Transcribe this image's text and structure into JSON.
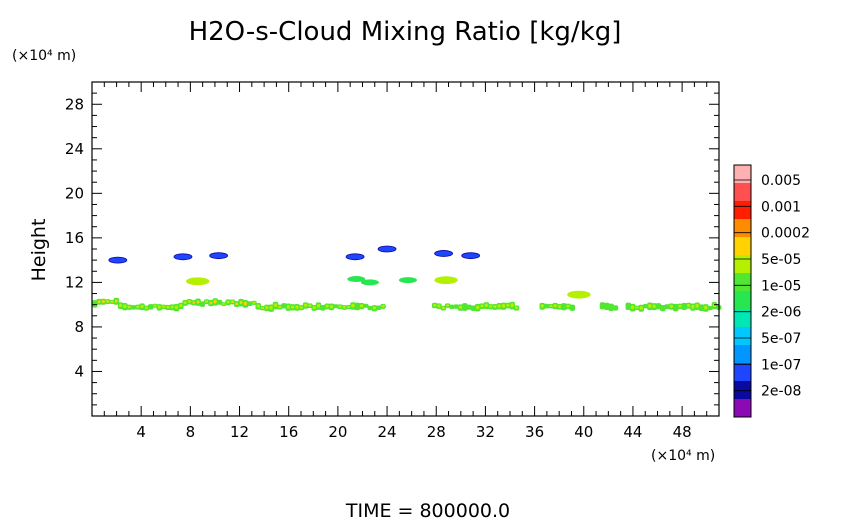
{
  "chart_data": {
    "type": "heatmap",
    "title": "H2O-s-Cloud Mixing Ratio [kg/kg]",
    "ylabel": "Height",
    "x_unit": "(×10⁴ m)",
    "y_unit": "(×10⁴ m)",
    "xlim": [
      0,
      51
    ],
    "ylim": [
      0,
      30
    ],
    "x_ticks": [
      4,
      8,
      12,
      16,
      20,
      24,
      28,
      32,
      36,
      40,
      44,
      48
    ],
    "y_ticks": [
      4,
      8,
      12,
      16,
      20,
      24,
      28
    ],
    "colorbar": {
      "levels": [
        "0.005",
        "0.001",
        "0.0002",
        "5e-05",
        "1e-05",
        "2e-06",
        "5e-07",
        "1e-07",
        "2e-08"
      ],
      "colors": [
        "#ffb0b0",
        "#ff5050",
        "#ff1e00",
        "#ff8c00",
        "#ffd200",
        "#b4f000",
        "#50e632",
        "#28e650",
        "#00e6b4",
        "#00c8ff",
        "#0096ff",
        "#1e46ff",
        "#0a0aa0",
        "#8c0ab4"
      ]
    },
    "cloud_layer": {
      "x_range": [
        0,
        51
      ],
      "height_range": [
        9.5,
        10.5
      ],
      "peak_category": "0.0002"
    },
    "cloud_patches": [
      {
        "x": 2.1,
        "y": 14.0,
        "category": "1e-07"
      },
      {
        "x": 7.4,
        "y": 14.3,
        "category": "1e-07"
      },
      {
        "x": 10.3,
        "y": 14.4,
        "category": "1e-07"
      },
      {
        "x": 21.4,
        "y": 14.3,
        "category": "1e-07"
      },
      {
        "x": 24.0,
        "y": 15.0,
        "category": "1e-07"
      },
      {
        "x": 28.6,
        "y": 14.6,
        "category": "1e-07"
      },
      {
        "x": 30.8,
        "y": 14.4,
        "category": "1e-07"
      },
      {
        "x": 8.6,
        "y": 12.1,
        "category": "5e-05"
      },
      {
        "x": 21.5,
        "y": 12.3,
        "category": "1e-05"
      },
      {
        "x": 22.6,
        "y": 12.0,
        "category": "1e-05"
      },
      {
        "x": 25.7,
        "y": 12.2,
        "category": "1e-05"
      },
      {
        "x": 28.8,
        "y": 12.2,
        "category": "5e-05"
      },
      {
        "x": 39.6,
        "y": 10.9,
        "category": "5e-05"
      }
    ]
  },
  "footer": {
    "time_label": "TIME = 800000.0"
  }
}
